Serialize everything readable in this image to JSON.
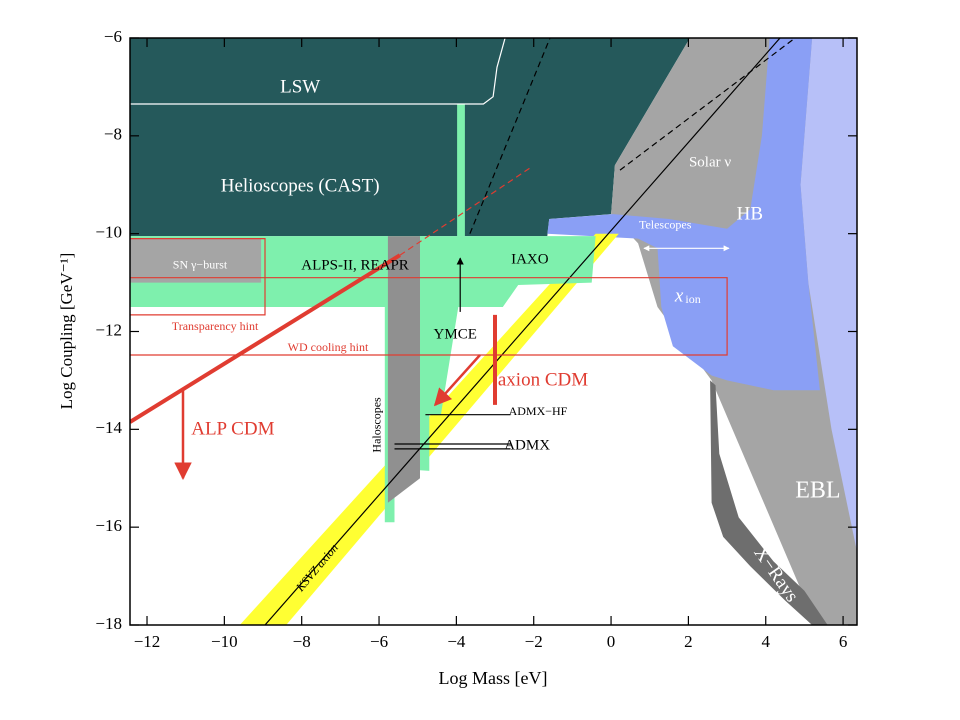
{
  "chart_data": {
    "type": "region",
    "xlabel": "Log Mass [eV]",
    "ylabel": "Log Coupling [GeV⁻¹]",
    "xlim": [
      -12.44,
      6.36
    ],
    "ylim": [
      -18,
      -6
    ],
    "xticks": [
      {
        "value": -12,
        "label": "−12"
      },
      {
        "value": -10,
        "label": "−10"
      },
      {
        "value": -8,
        "label": "−8"
      },
      {
        "value": -6,
        "label": "−6"
      },
      {
        "value": -4,
        "label": "−4"
      },
      {
        "value": -2,
        "label": "−2"
      },
      0,
      2,
      4,
      6
    ],
    "yticks": [
      {
        "value": -18,
        "label": "−18"
      },
      {
        "value": -16,
        "label": "−16"
      },
      {
        "value": -14,
        "label": "−14"
      },
      {
        "value": -12,
        "label": "−12"
      },
      {
        "value": -10,
        "label": "−10"
      },
      {
        "value": -8,
        "label": "−8"
      },
      {
        "value": -6,
        "label": "−6"
      }
    ],
    "regions": [
      {
        "color": "#25595b",
        "x": [
          -12.44,
          2.04,
          0.1,
          0.0,
          -1.6,
          -1.65,
          -12.44
        ],
        "y": [
          -6,
          -6,
          -8.6,
          -9.6,
          -9.7,
          -10.05,
          -10.05
        ]
      },
      {
        "color": "#a5a5a5",
        "x": [
          0.0,
          0.1,
          2.04,
          6.36,
          6.36,
          5.3,
          2.6,
          1.2,
          0.7
        ],
        "y": [
          -9.6,
          -8.6,
          -6,
          -6,
          -18,
          -18,
          -13.0,
          -11.5,
          -10.2
        ]
      },
      {
        "color": "#b7c0f8",
        "x": [
          5.2,
          6.36,
          6.36,
          5.7,
          5.1,
          4.9
        ],
        "y": [
          -6,
          -6,
          -16.5,
          -14.0,
          -11.0,
          -9.0
        ]
      },
      {
        "color": "#8a9ff5",
        "x": [
          -1.65,
          -1.6,
          0.05,
          1.5,
          3.0,
          3.6,
          3.9,
          4.1,
          5.2,
          4.9,
          5.1,
          5.4,
          4.2,
          3.0,
          2.6,
          1.6,
          1.3,
          1.2,
          0.7
        ],
        "y": [
          -10.0,
          -9.7,
          -9.6,
          -9.7,
          -9.9,
          -9.5,
          -8.0,
          -6,
          -6,
          -9.0,
          -11.0,
          -13.2,
          -13.2,
          -13.0,
          -12.9,
          -12.3,
          -11.5,
          -10.3,
          -10.1
        ]
      },
      {
        "color": "#6e6e6e",
        "x": [
          2.56,
          2.7,
          2.8,
          3.3,
          4.2,
          5.0,
          5.6,
          5.2,
          4.5,
          3.6,
          2.9,
          2.6
        ],
        "y": [
          -13.0,
          -13.1,
          -14.5,
          -15.8,
          -16.7,
          -17.3,
          -18,
          -18,
          -17.5,
          -16.8,
          -16.2,
          -15.5
        ]
      },
      {
        "color": "#ffff33",
        "x": [
          -9.6,
          -8.4,
          0.2,
          -0.4
        ],
        "y": [
          -18,
          -18,
          -10.0,
          -10.0
        ]
      },
      {
        "color": "#7ef0ad",
        "x": [
          -12.44,
          -0.4,
          -0.5,
          -2.4,
          -2.8,
          -12.44
        ],
        "y": [
          -10.05,
          -10.05,
          -11.0,
          -11.05,
          -11.5,
          -11.5
        ]
      },
      {
        "color": "#a5a5a5",
        "x": [
          -12.44,
          -9.05,
          -9.05,
          -12.44
        ],
        "y": [
          -10.1,
          -10.1,
          -11.0,
          -11.0
        ]
      },
      {
        "color": "#7ef0ad",
        "x": [
          -5.85,
          -4.7,
          -4.7,
          -5.6,
          -5.6,
          -5.85
        ],
        "y": [
          -11.5,
          -11.5,
          -14.85,
          -14.8,
          -15.9,
          -15.9
        ]
      },
      {
        "color": "#7ef0ad",
        "x": [
          -4.85,
          -3.95,
          -4.4,
          -4.85
        ],
        "y": [
          -11.5,
          -11.5,
          -13.7,
          -13.7
        ]
      },
      {
        "color": "#7ef0ad",
        "x": [
          -3.98,
          -3.78,
          -3.78,
          -3.98
        ],
        "y": [
          -7.35,
          -7.35,
          -10.05,
          -10.05
        ]
      },
      {
        "color": "#909090",
        "x": [
          -5.77,
          -4.94,
          -4.94,
          -5.77
        ],
        "y": [
          -10.05,
          -10.05,
          -15.0,
          -15.5
        ]
      }
    ],
    "lines": [
      {
        "color": "#ffffff",
        "style": "solid",
        "x": [
          -12.44,
          -3.3,
          -3.05,
          -2.95,
          -2.74
        ],
        "y": [
          -7.35,
          -7.35,
          -7.2,
          -6.6,
          -6
        ]
      },
      {
        "color": "#000000",
        "style": "solid",
        "x": [
          -8.95,
          4.37
        ],
        "y": [
          -18,
          -6
        ]
      },
      {
        "color": "#000000",
        "style": "dashed",
        "x": [
          -3.65,
          -1.58
        ],
        "y": [
          -10.0,
          -6
        ]
      },
      {
        "color": "#000000",
        "style": "dashed",
        "x": [
          0.23,
          4.76
        ],
        "y": [
          -8.7,
          -6
        ]
      },
      {
        "color": "#e03c31",
        "style": "thick",
        "x": [
          -12.44,
          -5.46
        ],
        "y": [
          -13.85,
          -10.44
        ]
      },
      {
        "color": "#e03c31",
        "style": "dashed",
        "x": [
          -5.46,
          -2.1
        ],
        "y": [
          -10.44,
          -8.66
        ]
      },
      {
        "color": "#e03c31",
        "style": "thick",
        "x": [
          -3,
          -3
        ],
        "y": [
          -11.66,
          -13.5
        ]
      },
      {
        "color": "#e03c31",
        "style": "solid",
        "x": [
          -12.44,
          -8.95,
          -8.95,
          -12.44
        ],
        "y": [
          -10.1,
          -10.1,
          -11.66,
          -11.66
        ]
      },
      {
        "color": "#e03c31",
        "style": "solid",
        "x": [
          -12.44,
          3.0,
          3.0,
          -12.44
        ],
        "y": [
          -10.9,
          -10.9,
          -12.48,
          -12.48
        ]
      },
      {
        "color": "#e03c31",
        "style": "arrow",
        "x": [
          -11.07,
          -11.07
        ],
        "y": [
          -13.2,
          -15.0
        ]
      },
      {
        "color": "#e03c31",
        "style": "arrow",
        "x": [
          -3.39,
          -4.55
        ],
        "y": [
          -12.48,
          -13.5
        ]
      },
      {
        "color": "#000000",
        "style": "arrow",
        "x": [
          -3.9,
          -3.9
        ],
        "y": [
          -11.6,
          -10.5
        ]
      },
      {
        "color": "#000000",
        "style": "solid",
        "x": [
          -4.8,
          -2.6
        ],
        "y": [
          -13.7,
          -13.7
        ]
      },
      {
        "color": "#000000",
        "style": "solid",
        "x": [
          -5.6,
          -2.6
        ],
        "y": [
          -14.3,
          -14.3
        ]
      },
      {
        "color": "#000000",
        "style": "solid",
        "x": [
          -5.6,
          -2.6
        ],
        "y": [
          -14.4,
          -14.4
        ]
      },
      {
        "color": "#ffffff",
        "style": "double-arrow",
        "x": [
          0.85,
          3.05
        ],
        "y": [
          -10.3,
          -10.3
        ]
      }
    ],
    "annotations": [
      {
        "text": "LSW",
        "x": -8.04,
        "y": -7.02,
        "color": "#ffffff",
        "size": "large"
      },
      {
        "text": "Helioscopes (CAST)",
        "x": -8.04,
        "y": -9.05,
        "color": "#ffffff",
        "size": "large"
      },
      {
        "text": "Solar ν",
        "x": 2.56,
        "y": -8.56,
        "color": "#ffffff",
        "size": "medium"
      },
      {
        "text": "HB",
        "x": 3.59,
        "y": -9.62,
        "color": "#ffffff",
        "size": "large"
      },
      {
        "text": "Telescopes",
        "x": 1.4,
        "y": -9.84,
        "color": "#ffffff",
        "size": "small"
      },
      {
        "text": "SN γ−burst",
        "x": -10.63,
        "y": -10.66,
        "color": "#ffffff",
        "size": "small"
      },
      {
        "text": "ALPS-II, REAPR",
        "x": -6.62,
        "y": -10.66,
        "color": "#000000",
        "size": "medium"
      },
      {
        "text": "IAXO",
        "x": -2.1,
        "y": -10.54,
        "color": "#000000",
        "size": "medium"
      },
      {
        "text": "x",
        "x": 1.76,
        "y": -11.3,
        "color": "#ffffff",
        "size": "large"
      },
      {
        "text": "ion",
        "x": 2.12,
        "y": -11.36,
        "color": "#ffffff",
        "size": "small"
      },
      {
        "text": "Transparency hint",
        "x": -10.24,
        "y": -11.91,
        "color": "#e03c31",
        "size": "small"
      },
      {
        "text": "WD cooling hint",
        "x": -7.32,
        "y": -12.34,
        "color": "#e03c31",
        "size": "small"
      },
      {
        "text": "YMCE",
        "x": -4.03,
        "y": -12.07,
        "color": "#000000",
        "size": "medium"
      },
      {
        "text": "axion CDM",
        "x": -1.76,
        "y": -13.01,
        "color": "#e03c31",
        "size": "large"
      },
      {
        "text": "ADMX−HF",
        "x": -1.89,
        "y": -13.65,
        "color": "#000000",
        "size": "small"
      },
      {
        "text": "ADMX",
        "x": -2.17,
        "y": -14.34,
        "color": "#000000",
        "size": "medium"
      },
      {
        "text": "Haloscopes",
        "x": -6.03,
        "y": -13.91,
        "color": "#000000",
        "size": "small",
        "rotation": -90
      },
      {
        "text": "ALP CDM",
        "x": -9.78,
        "y": -14.02,
        "color": "#e03c31",
        "size": "large"
      },
      {
        "text": "EBL",
        "x": 5.35,
        "y": -15.28,
        "color": "#ffffff",
        "size": "huge"
      },
      {
        "text": "X−Rays",
        "x": 4.24,
        "y": -16.98,
        "color": "#ffffff",
        "size": "large",
        "rotation": 55
      },
      {
        "text": "KSVZ axion",
        "x": -7.58,
        "y": -16.84,
        "color": "#000000",
        "size": "small",
        "rotation": -50
      }
    ]
  }
}
